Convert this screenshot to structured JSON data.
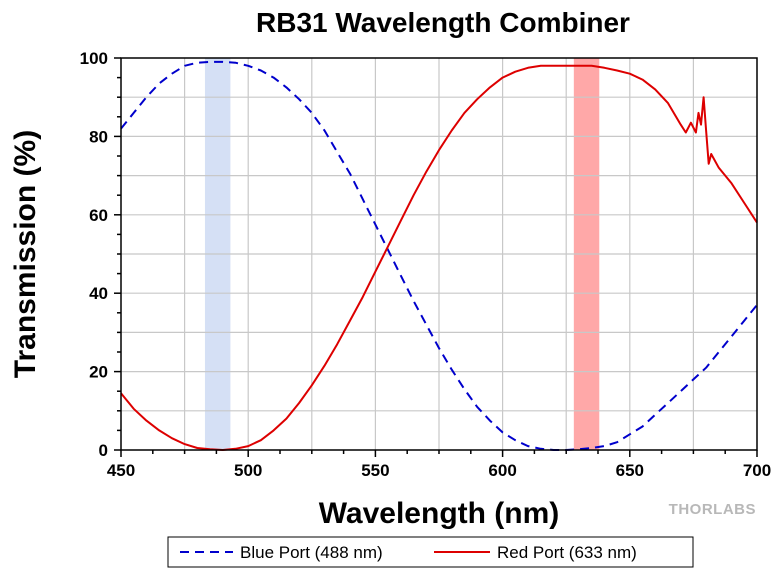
{
  "chart_data": {
    "type": "line",
    "title": "RB31 Wavelength Combiner",
    "xlabel": "Wavelength (nm)",
    "ylabel": "Transmission (%)",
    "xlim": [
      450,
      700
    ],
    "ylim": [
      0,
      100
    ],
    "xticks": [
      450,
      500,
      550,
      600,
      650,
      700
    ],
    "yticks": [
      0,
      20,
      40,
      60,
      80,
      100
    ],
    "grid": true,
    "legend_position": "bottom",
    "watermark": "THORLABS",
    "bands": [
      {
        "x0": 483,
        "x1": 493,
        "color": "#d5e0f5"
      },
      {
        "x0": 628,
        "x1": 638,
        "color": "#ffa8a8"
      }
    ],
    "series": [
      {
        "name": "Blue Port (488 nm)",
        "color": "#0000cc",
        "dash": "dashed",
        "x": [
          450,
          455,
          460,
          465,
          470,
          475,
          480,
          485,
          490,
          495,
          500,
          505,
          510,
          515,
          520,
          525,
          530,
          535,
          540,
          545,
          550,
          555,
          560,
          565,
          570,
          575,
          580,
          585,
          590,
          595,
          600,
          605,
          610,
          615,
          620,
          625,
          630,
          635,
          640,
          645,
          650,
          655,
          660,
          665,
          670,
          675,
          680,
          685,
          690,
          695,
          700
        ],
        "y": [
          82,
          86,
          90,
          93.5,
          96,
          98,
          98.8,
          99,
          99,
          98.8,
          98,
          96.8,
          95,
          92.5,
          89.5,
          86,
          81.5,
          76,
          70.5,
          64,
          57.5,
          51,
          44.5,
          38,
          32,
          26,
          20.5,
          15.5,
          11,
          7.5,
          4.5,
          2.5,
          1,
          0.3,
          0,
          0,
          0.2,
          0.5,
          1,
          2,
          4,
          6,
          9,
          12,
          15,
          18,
          21,
          25,
          29,
          33,
          37
        ]
      },
      {
        "name": "Red Port (633 nm)",
        "color": "#dd0000",
        "dash": "solid",
        "x": [
          450,
          455,
          460,
          465,
          470,
          475,
          480,
          485,
          490,
          495,
          500,
          505,
          510,
          515,
          520,
          525,
          530,
          535,
          540,
          545,
          550,
          555,
          560,
          565,
          570,
          575,
          580,
          585,
          590,
          595,
          600,
          605,
          610,
          615,
          620,
          625,
          630,
          635,
          640,
          645,
          650,
          655,
          660,
          665,
          670,
          672,
          674,
          676,
          677,
          678,
          679,
          680,
          681,
          682,
          685,
          690,
          695,
          700
        ],
        "y": [
          14.5,
          10.5,
          7.5,
          5,
          3,
          1.5,
          0.5,
          0.2,
          0,
          0.3,
          1,
          2.5,
          5,
          8,
          12,
          16.5,
          21.5,
          27,
          33,
          39,
          45.5,
          52,
          58.5,
          65,
          71,
          76.5,
          81.5,
          86,
          89.5,
          92.5,
          95,
          96.5,
          97.5,
          98,
          98,
          98,
          98,
          98,
          97.5,
          96.8,
          96,
          94.5,
          92,
          88.5,
          83,
          81,
          83.5,
          81,
          86,
          83,
          90,
          81.5,
          73,
          75.5,
          72,
          68,
          63,
          58
        ]
      }
    ]
  }
}
